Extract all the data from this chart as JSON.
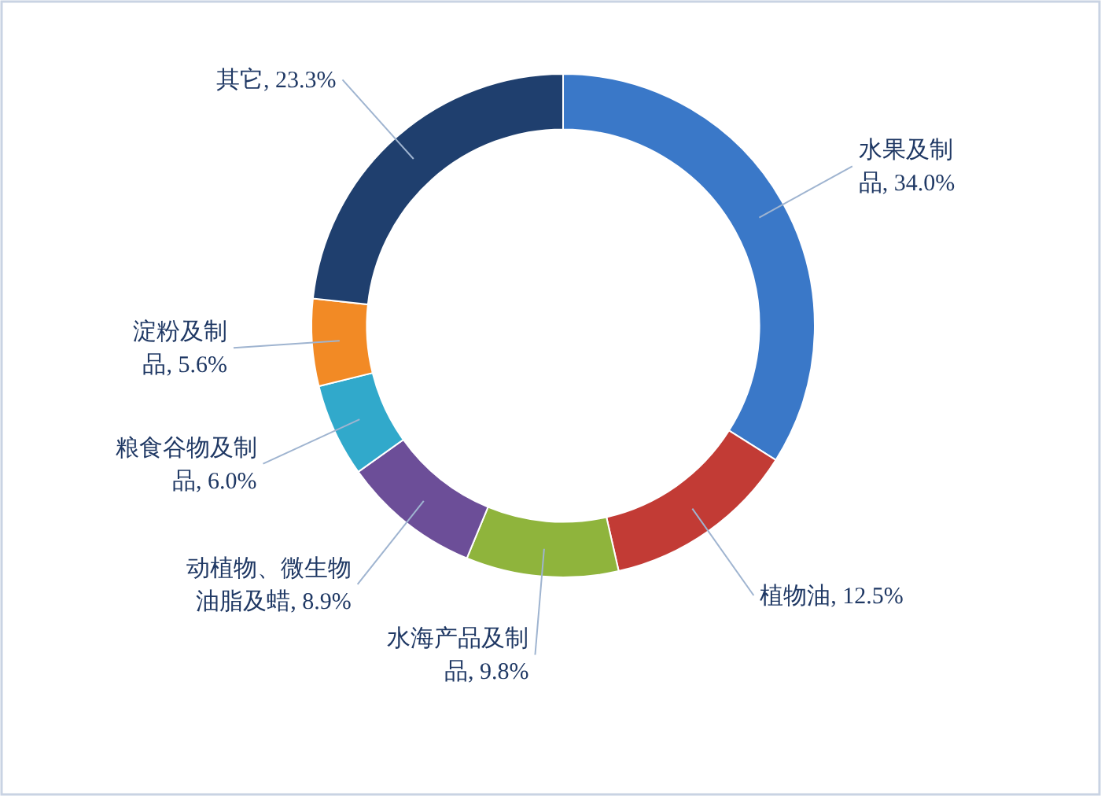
{
  "chart_data": {
    "type": "donut",
    "categories": [
      "水果及制品",
      "植物油",
      "水海产品及制品",
      "动植物、微生物油脂及蜡",
      "粮食谷物及制品",
      "淀粉及制品",
      "其它"
    ],
    "values": [
      34.0,
      12.5,
      9.8,
      8.9,
      6.0,
      5.6,
      23.3
    ],
    "value_labels": [
      "34.0%",
      "12.5%",
      "9.8%",
      "8.9%",
      "6.0%",
      "5.6%",
      "23.3%"
    ],
    "colors": [
      "#3a78c8",
      "#c23b35",
      "#8fb43c",
      "#6c4e98",
      "#31a9cb",
      "#f28a25",
      "#1f3f6e"
    ]
  }
}
